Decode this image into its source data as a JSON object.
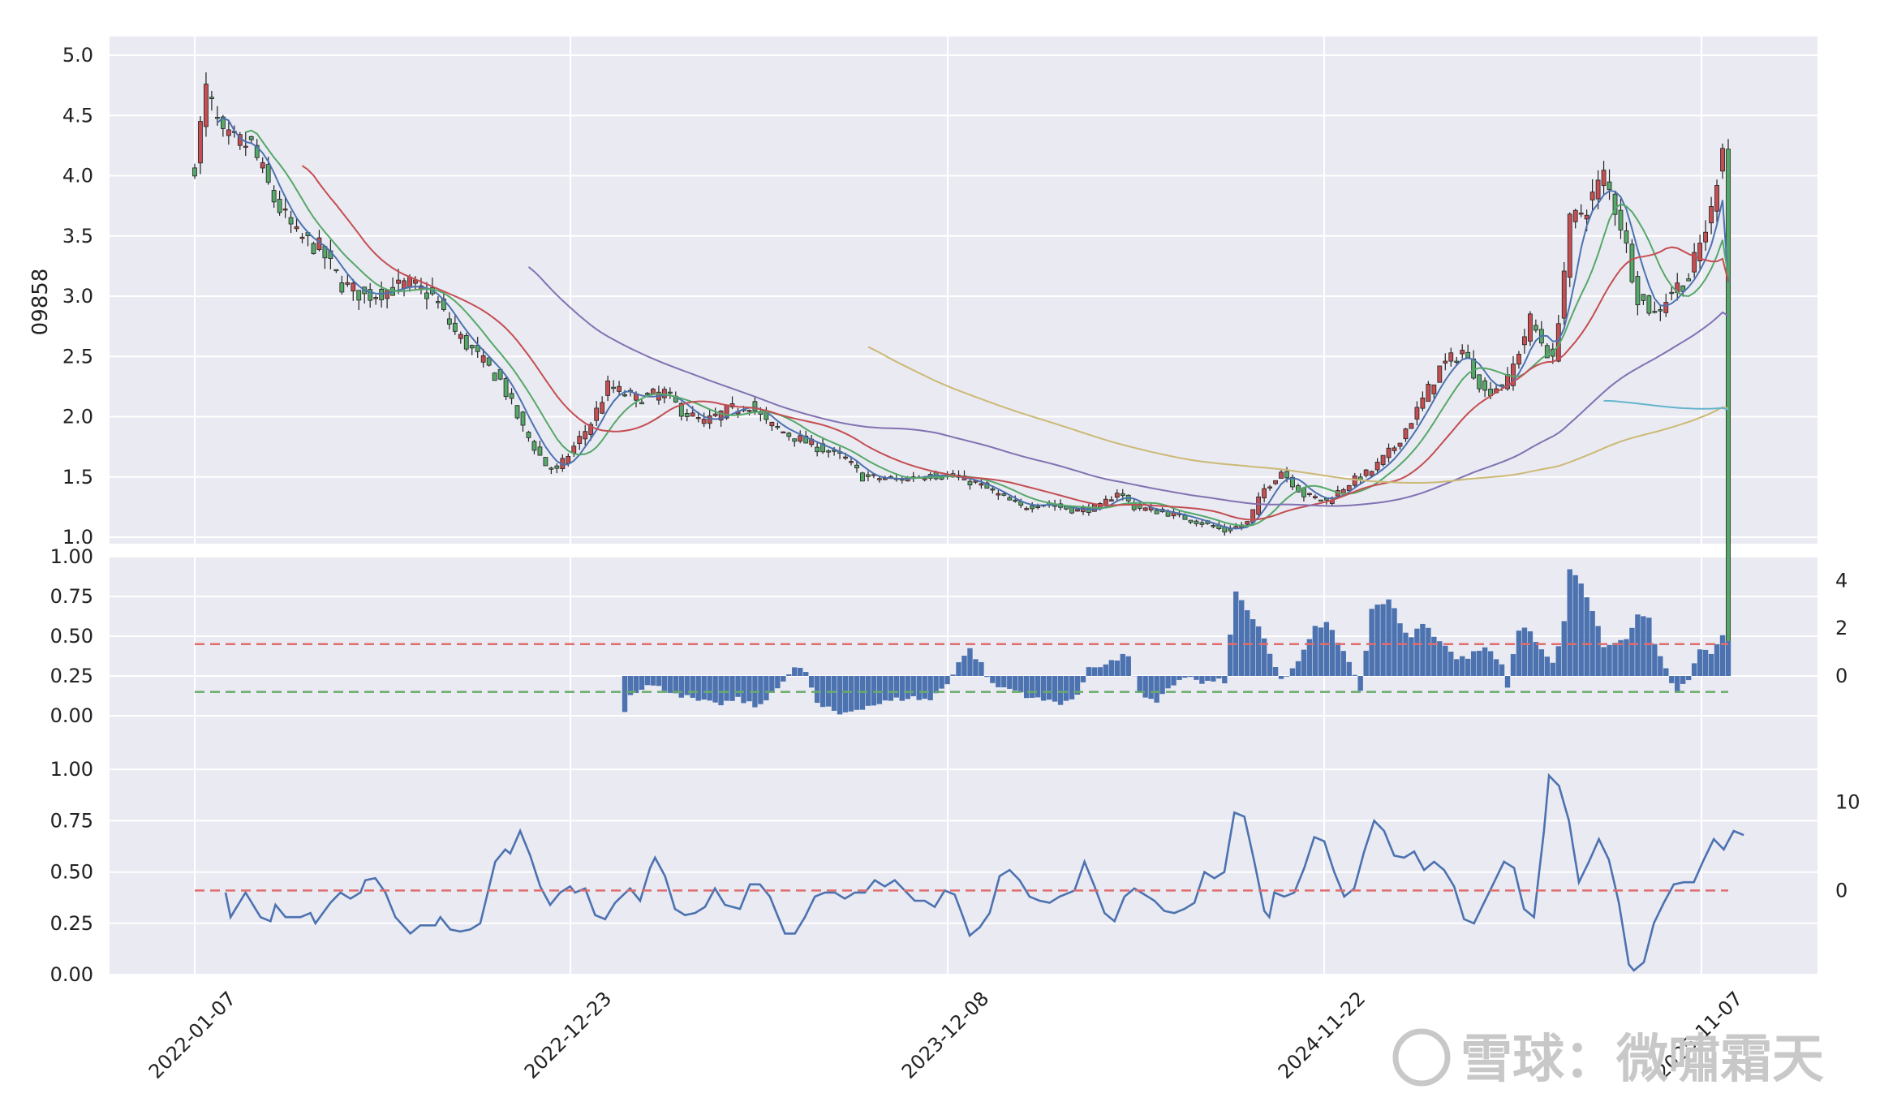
{
  "chart_data": [
    {
      "type": "candlestick",
      "ylabel": "09858",
      "ylim": [
        1.0,
        5.0
      ],
      "yticks": [
        "1.0",
        "1.5",
        "2.0",
        "2.5",
        "3.0",
        "3.5",
        "4.0",
        "4.5",
        "5.0"
      ],
      "grid": true,
      "x_ticks": [
        "2022-01-07",
        "2022-12-23",
        "2023-12-08",
        "2024-11-22",
        "2025-11-07"
      ],
      "close_anchors": [
        [
          0,
          4.1
        ],
        [
          2,
          4.7
        ],
        [
          5,
          4.3
        ],
        [
          10,
          4.25
        ],
        [
          14,
          3.8
        ],
        [
          18,
          3.5
        ],
        [
          22,
          3.4
        ],
        [
          26,
          3.1
        ],
        [
          30,
          3.0
        ],
        [
          34,
          3.05
        ],
        [
          38,
          3.1
        ],
        [
          42,
          3.0
        ],
        [
          46,
          2.7
        ],
        [
          50,
          2.5
        ],
        [
          54,
          2.3
        ],
        [
          58,
          1.9
        ],
        [
          62,
          1.6
        ],
        [
          64,
          1.55
        ],
        [
          67,
          1.75
        ],
        [
          70,
          1.95
        ],
        [
          73,
          2.25
        ],
        [
          78,
          2.15
        ],
        [
          83,
          2.2
        ],
        [
          86,
          2.05
        ],
        [
          90,
          1.95
        ],
        [
          94,
          2.05
        ],
        [
          98,
          2.1
        ],
        [
          101,
          1.95
        ],
        [
          105,
          1.85
        ],
        [
          110,
          1.75
        ],
        [
          115,
          1.65
        ],
        [
          118,
          1.5
        ],
        [
          124,
          1.48
        ],
        [
          130,
          1.52
        ],
        [
          134,
          1.5
        ],
        [
          138,
          1.45
        ],
        [
          142,
          1.35
        ],
        [
          146,
          1.25
        ],
        [
          150,
          1.28
        ],
        [
          156,
          1.22
        ],
        [
          160,
          1.25
        ],
        [
          163,
          1.38
        ],
        [
          166,
          1.25
        ],
        [
          172,
          1.2
        ],
        [
          178,
          1.12
        ],
        [
          182,
          1.05
        ],
        [
          186,
          1.12
        ],
        [
          189,
          1.4
        ],
        [
          192,
          1.55
        ],
        [
          196,
          1.35
        ],
        [
          200,
          1.3
        ],
        [
          204,
          1.45
        ],
        [
          208,
          1.55
        ],
        [
          212,
          1.75
        ],
        [
          216,
          2.05
        ],
        [
          220,
          2.4
        ],
        [
          224,
          2.55
        ],
        [
          228,
          2.2
        ],
        [
          232,
          2.3
        ],
        [
          236,
          2.8
        ],
        [
          240,
          2.45
        ],
        [
          243,
          3.6
        ],
        [
          246,
          3.75
        ],
        [
          249,
          4.0
        ],
        [
          252,
          3.6
        ],
        [
          255,
          3.0
        ],
        [
          258,
          2.85
        ],
        [
          261,
          3.05
        ],
        [
          264,
          3.15
        ],
        [
          268,
          3.7
        ],
        [
          270,
          4.3
        ]
      ],
      "moving_averages": [
        {
          "window": 5,
          "color": "#4c72b0"
        },
        {
          "window": 10,
          "color": "#55a868"
        },
        {
          "window": 20,
          "color": "#c44e52"
        },
        {
          "window": 60,
          "color": "#8172b2"
        },
        {
          "window": 120,
          "color": "#ccb974"
        },
        {
          "window": 250,
          "color": "#64b5cd"
        }
      ],
      "up_color": "#c44e52",
      "down_color": "#55a868"
    },
    {
      "type": "bar",
      "ylim_left": [
        0.0,
        1.0
      ],
      "yticks_left": [
        "0.00",
        "0.25",
        "0.50",
        "0.75",
        "1.00"
      ],
      "yticks_right": [
        "0",
        "2",
        "4"
      ],
      "ylim_right": [
        -1.6,
        4.8
      ],
      "hlines": [
        {
          "y": 0.45,
          "color": "#e06c6c"
        },
        {
          "y": 0.15,
          "color": "#6aaa6a"
        }
      ],
      "bar_color": "#4c72b0",
      "first_bar_index": 76,
      "value_anchors": [
        [
          76,
          -1.5
        ],
        [
          77,
          -0.7
        ],
        [
          80,
          -0.4
        ],
        [
          84,
          -0.6
        ],
        [
          88,
          -1.0
        ],
        [
          92,
          -1.2
        ],
        [
          96,
          -1.0
        ],
        [
          100,
          -1.3
        ],
        [
          103,
          -0.4
        ],
        [
          106,
          0.3
        ],
        [
          108,
          0.2
        ],
        [
          110,
          -1.2
        ],
        [
          114,
          -1.6
        ],
        [
          118,
          -1.3
        ],
        [
          122,
          -1.1
        ],
        [
          126,
          -0.9
        ],
        [
          130,
          -1.0
        ],
        [
          133,
          -0.3
        ],
        [
          135,
          0.6
        ],
        [
          137,
          1.1
        ],
        [
          139,
          0.5
        ],
        [
          141,
          -0.4
        ],
        [
          145,
          -0.6
        ],
        [
          149,
          -1.0
        ],
        [
          153,
          -1.1
        ],
        [
          156,
          -0.9
        ],
        [
          158,
          0.4
        ],
        [
          161,
          0.5
        ],
        [
          165,
          0.9
        ],
        [
          167,
          -0.8
        ],
        [
          170,
          -1.2
        ],
        [
          172,
          -0.5
        ],
        [
          175,
          0.0
        ],
        [
          178,
          -0.3
        ],
        [
          182,
          -0.2
        ],
        [
          184,
          3.5
        ],
        [
          186,
          2.8
        ],
        [
          188,
          2.0
        ],
        [
          190,
          0.9
        ],
        [
          192,
          -0.2
        ],
        [
          194,
          0.3
        ],
        [
          196,
          1.0
        ],
        [
          198,
          2.0
        ],
        [
          200,
          2.2
        ],
        [
          202,
          1.5
        ],
        [
          204,
          0.5
        ],
        [
          206,
          -0.5
        ],
        [
          208,
          2.8
        ],
        [
          211,
          3.3
        ],
        [
          213,
          2.2
        ],
        [
          215,
          1.6
        ],
        [
          217,
          2.3
        ],
        [
          219,
          1.7
        ],
        [
          221,
          1.3
        ],
        [
          223,
          0.7
        ],
        [
          225,
          0.8
        ],
        [
          228,
          1.2
        ],
        [
          231,
          0.4
        ],
        [
          232,
          -0.4
        ],
        [
          234,
          2.0
        ],
        [
          236,
          1.9
        ],
        [
          238,
          1.1
        ],
        [
          240,
          0.5
        ],
        [
          242,
          2.2
        ],
        [
          243,
          4.5
        ],
        [
          245,
          3.8
        ],
        [
          247,
          2.7
        ],
        [
          249,
          1.3
        ],
        [
          251,
          1.3
        ],
        [
          253,
          1.6
        ],
        [
          255,
          2.5
        ],
        [
          257,
          2.5
        ],
        [
          258,
          1.3
        ],
        [
          260,
          0.3
        ],
        [
          262,
          -0.8
        ],
        [
          264,
          -0.1
        ],
        [
          266,
          1.0
        ],
        [
          268,
          1.0
        ],
        [
          270,
          1.8
        ],
        [
          271,
          1.5
        ]
      ]
    },
    {
      "type": "line",
      "ylim_left": [
        0.0,
        1.0
      ],
      "yticks_left": [
        "0.00",
        "0.25",
        "0.50",
        "0.75",
        "1.00"
      ],
      "yticks_right": [
        "0",
        "10"
      ],
      "ylim_right": [
        -9.6,
        13.2
      ],
      "hlines": [
        {
          "y": 0.41,
          "color": "#e06c6c"
        }
      ],
      "line_color": "#4c72b0",
      "first_index": 5,
      "value_anchors": [
        [
          5,
          0.4
        ],
        [
          6,
          0.28
        ],
        [
          9,
          0.4
        ],
        [
          12,
          0.28
        ],
        [
          14,
          0.26
        ],
        [
          15,
          0.34
        ],
        [
          17,
          0.28
        ],
        [
          20,
          0.28
        ],
        [
          22,
          0.3
        ],
        [
          23,
          0.25
        ],
        [
          26,
          0.35
        ],
        [
          28,
          0.4
        ],
        [
          30,
          0.37
        ],
        [
          32,
          0.4
        ],
        [
          33,
          0.46
        ],
        [
          35,
          0.47
        ],
        [
          37,
          0.4
        ],
        [
          39,
          0.28
        ],
        [
          42,
          0.2
        ],
        [
          44,
          0.24
        ],
        [
          47,
          0.24
        ],
        [
          48,
          0.28
        ],
        [
          50,
          0.22
        ],
        [
          52,
          0.21
        ],
        [
          54,
          0.22
        ],
        [
          56,
          0.25
        ],
        [
          57,
          0.35
        ],
        [
          59,
          0.55
        ],
        [
          61,
          0.61
        ],
        [
          62,
          0.59
        ],
        [
          64,
          0.7
        ],
        [
          66,
          0.58
        ],
        [
          68,
          0.43
        ],
        [
          70,
          0.34
        ],
        [
          72,
          0.4
        ],
        [
          74,
          0.43
        ],
        [
          75,
          0.4
        ],
        [
          77,
          0.42
        ],
        [
          79,
          0.29
        ],
        [
          81,
          0.27
        ],
        [
          83,
          0.35
        ],
        [
          86,
          0.42
        ],
        [
          88,
          0.36
        ],
        [
          90,
          0.52
        ],
        [
          91,
          0.57
        ],
        [
          93,
          0.48
        ],
        [
          95,
          0.32
        ],
        [
          97,
          0.29
        ],
        [
          99,
          0.3
        ],
        [
          101,
          0.33
        ],
        [
          103,
          0.42
        ],
        [
          105,
          0.34
        ],
        [
          108,
          0.32
        ],
        [
          110,
          0.44
        ],
        [
          112,
          0.44
        ],
        [
          114,
          0.38
        ],
        [
          116,
          0.26
        ],
        [
          117,
          0.2
        ],
        [
          119,
          0.2
        ],
        [
          121,
          0.28
        ],
        [
          123,
          0.38
        ],
        [
          125,
          0.4
        ],
        [
          127,
          0.4
        ],
        [
          129,
          0.37
        ],
        [
          131,
          0.4
        ],
        [
          133,
          0.4
        ],
        [
          135,
          0.46
        ],
        [
          137,
          0.43
        ],
        [
          139,
          0.46
        ],
        [
          141,
          0.41
        ],
        [
          143,
          0.36
        ],
        [
          145,
          0.36
        ],
        [
          147,
          0.33
        ],
        [
          149,
          0.41
        ],
        [
          151,
          0.39
        ],
        [
          153,
          0.26
        ],
        [
          154,
          0.19
        ],
        [
          156,
          0.23
        ],
        [
          158,
          0.3
        ],
        [
          160,
          0.48
        ],
        [
          162,
          0.51
        ],
        [
          164,
          0.46
        ],
        [
          166,
          0.38
        ],
        [
          168,
          0.36
        ],
        [
          170,
          0.35
        ],
        [
          172,
          0.38
        ],
        [
          175,
          0.41
        ],
        [
          177,
          0.55
        ],
        [
          179,
          0.43
        ],
        [
          181,
          0.3
        ],
        [
          183,
          0.26
        ],
        [
          185,
          0.38
        ],
        [
          187,
          0.42
        ],
        [
          189,
          0.39
        ],
        [
          191,
          0.36
        ],
        [
          193,
          0.31
        ],
        [
          195,
          0.3
        ],
        [
          197,
          0.32
        ],
        [
          199,
          0.35
        ],
        [
          201,
          0.5
        ],
        [
          203,
          0.47
        ],
        [
          205,
          0.5
        ],
        [
          207,
          0.79
        ],
        [
          209,
          0.77
        ],
        [
          211,
          0.55
        ],
        [
          213,
          0.31
        ],
        [
          214,
          0.28
        ],
        [
          215,
          0.4
        ],
        [
          217,
          0.38
        ],
        [
          219,
          0.4
        ],
        [
          221,
          0.52
        ],
        [
          223,
          0.67
        ],
        [
          225,
          0.65
        ],
        [
          227,
          0.5
        ],
        [
          229,
          0.38
        ],
        [
          231,
          0.42
        ],
        [
          233,
          0.6
        ],
        [
          235,
          0.75
        ],
        [
          237,
          0.7
        ],
        [
          239,
          0.58
        ],
        [
          241,
          0.57
        ],
        [
          243,
          0.6
        ],
        [
          245,
          0.51
        ],
        [
          247,
          0.55
        ],
        [
          249,
          0.51
        ],
        [
          251,
          0.43
        ],
        [
          253,
          0.27
        ],
        [
          255,
          0.25
        ],
        [
          257,
          0.35
        ],
        [
          259,
          0.45
        ],
        [
          261,
          0.55
        ],
        [
          263,
          0.52
        ],
        [
          265,
          0.32
        ],
        [
          267,
          0.28
        ],
        [
          269,
          0.7
        ],
        [
          270,
          0.97
        ],
        [
          272,
          0.92
        ],
        [
          274,
          0.75
        ],
        [
          276,
          0.45
        ],
        [
          278,
          0.55
        ],
        [
          280,
          0.66
        ],
        [
          282,
          0.56
        ],
        [
          284,
          0.35
        ],
        [
          286,
          0.05
        ],
        [
          287,
          0.02
        ],
        [
          289,
          0.06
        ],
        [
          291,
          0.25
        ],
        [
          293,
          0.35
        ],
        [
          295,
          0.44
        ],
        [
          297,
          0.45
        ],
        [
          299,
          0.45
        ],
        [
          301,
          0.56
        ],
        [
          303,
          0.66
        ],
        [
          305,
          0.61
        ],
        [
          307,
          0.7
        ],
        [
          309,
          0.68
        ]
      ]
    }
  ],
  "watermark": "雪球：微嘯霜天"
}
